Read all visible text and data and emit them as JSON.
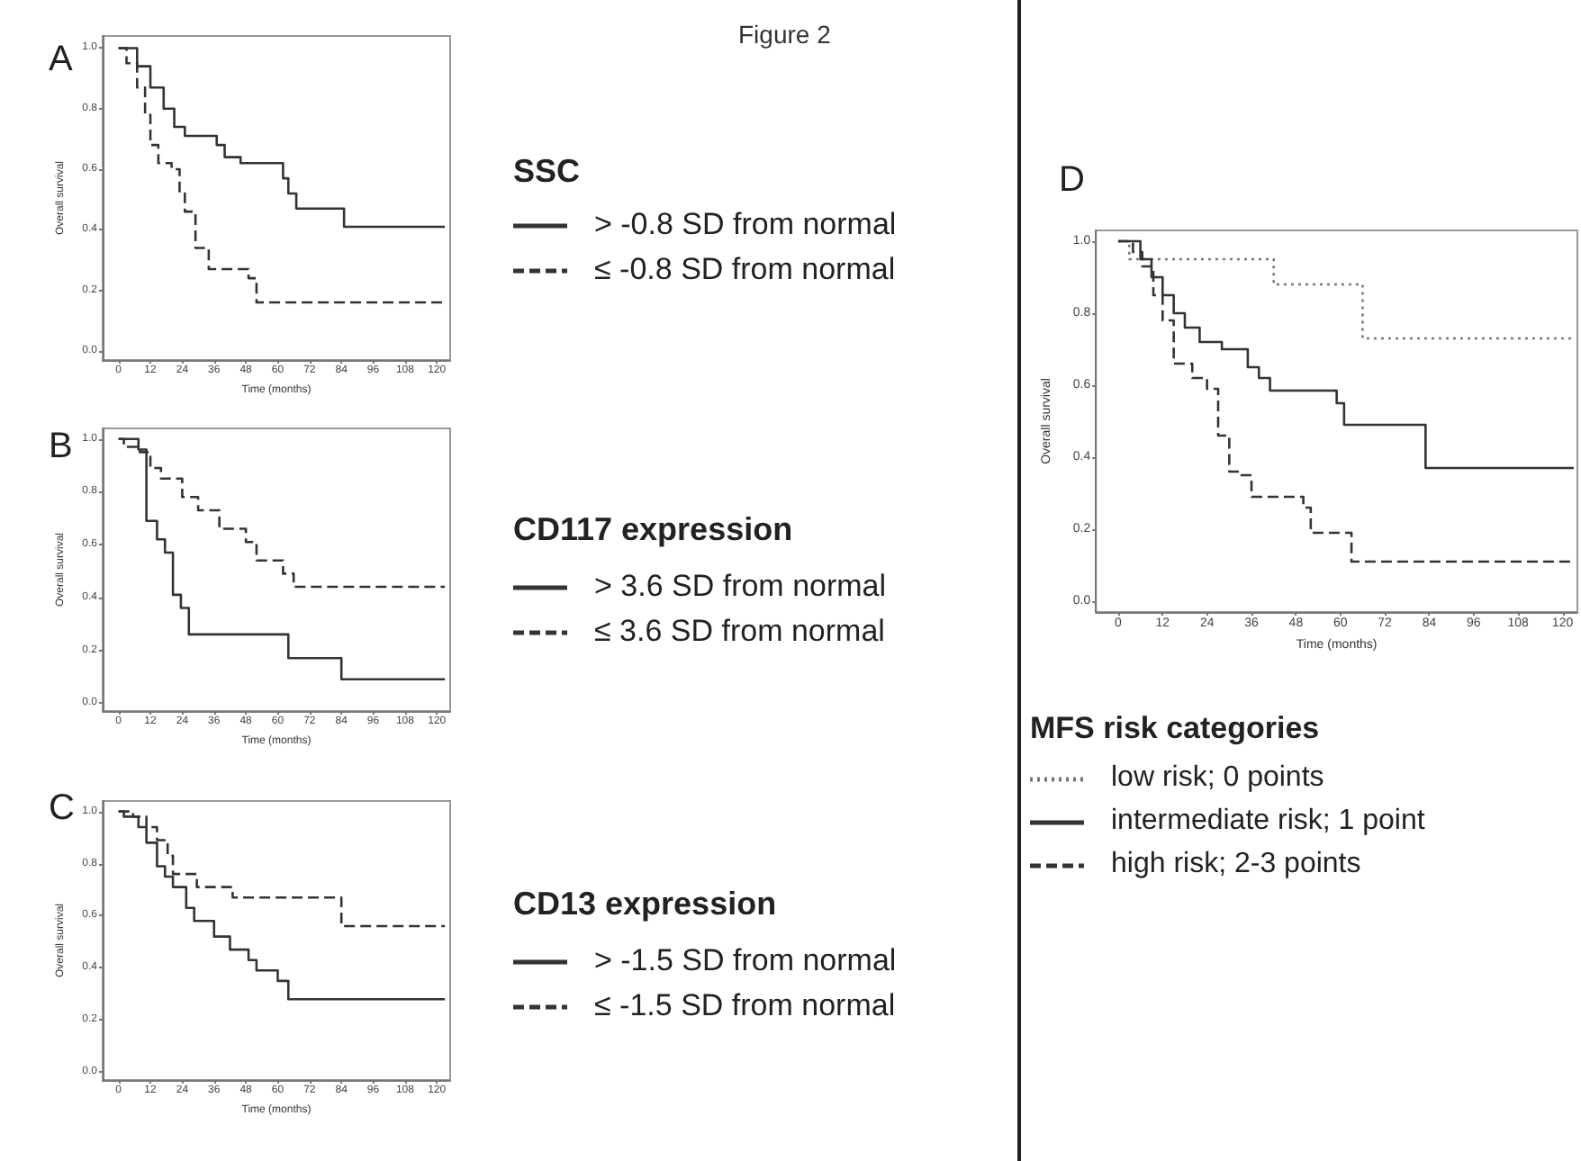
{
  "chart_data": [
    {
      "type": "step",
      "title": "A",
      "annotations": [
        "Figure 2"
      ],
      "xlabel": "Time (months)",
      "ylabel": "Overall survival",
      "legend_title": "SSC",
      "legend": "right",
      "grid": false,
      "marker": "none",
      "xlim": [
        -6,
        125
      ],
      "ylim": [
        -0.03,
        1.04
      ],
      "xticks": [
        0,
        12,
        24,
        36,
        48,
        60,
        72,
        84,
        96,
        108,
        120
      ],
      "yticks": [
        {
          "value": 0,
          "label": "0.0"
        },
        {
          "value": 0.2,
          "label": "0.2"
        },
        {
          "value": 0.4,
          "label": "0.4"
        },
        {
          "value": 0.6,
          "label": "0.6"
        },
        {
          "value": 0.8,
          "label": "0.8"
        },
        {
          "value": 1,
          "label": "1.0"
        }
      ],
      "series": [
        {
          "name": "> -0.8 SD from normal",
          "color": "#333333",
          "line_style": "solid",
          "x": [
            0,
            7,
            12,
            17,
            21,
            25,
            37,
            40,
            46,
            62,
            64,
            67,
            85,
            123
          ],
          "values": [
            1,
            0.94,
            0.87,
            0.8,
            0.74,
            0.71,
            0.68,
            0.64,
            0.62,
            0.57,
            0.52,
            0.47,
            0.41,
            0.41
          ]
        },
        {
          "name": "≤ -0.8 SD from normal",
          "color": "#333333",
          "line_style": "dashed",
          "x": [
            0,
            3,
            7,
            10,
            12,
            15,
            20,
            23,
            25,
            29,
            34,
            49,
            52,
            123
          ],
          "values": [
            1,
            0.95,
            0.87,
            0.78,
            0.68,
            0.62,
            0.6,
            0.52,
            0.46,
            0.34,
            0.27,
            0.24,
            0.16,
            0.16
          ]
        }
      ]
    },
    {
      "type": "step",
      "title": "B",
      "xlabel": "Time (months)",
      "ylabel": "Overall survival",
      "legend_title": "CD117 expression",
      "legend": "right",
      "grid": false,
      "marker": "none",
      "xlim": [
        -6,
        125
      ],
      "ylim": [
        -0.03,
        1.04
      ],
      "xticks": [
        0,
        12,
        24,
        36,
        48,
        60,
        72,
        84,
        96,
        108,
        120
      ],
      "yticks": [
        {
          "value": 0,
          "label": "0.0"
        },
        {
          "value": 0.2,
          "label": "0.2"
        },
        {
          "value": 0.4,
          "label": "0.4"
        },
        {
          "value": 0.6,
          "label": "0.6"
        },
        {
          "value": 0.8,
          "label": "0.8"
        },
        {
          "value": 1,
          "label": "1.0"
        }
      ],
      "series": [
        {
          "name": "> 3.6 SD from normal",
          "color": "#333333",
          "line_style": "solid",
          "x": [
            0,
            7.5,
            10.5,
            14.5,
            17.5,
            20.5,
            23.5,
            26.5,
            64,
            84,
            123
          ],
          "values": [
            1,
            0.96,
            0.69,
            0.62,
            0.57,
            0.41,
            0.36,
            0.26,
            0.17,
            0.09,
            0.09
          ]
        },
        {
          "name": "≤ 3.6 SD from normal",
          "color": "#333333",
          "line_style": "dashed",
          "x": [
            0,
            2,
            8,
            12,
            16,
            24,
            30,
            38,
            48,
            52,
            62,
            66,
            123
          ],
          "values": [
            1,
            0.97,
            0.95,
            0.89,
            0.85,
            0.78,
            0.73,
            0.66,
            0.61,
            0.54,
            0.49,
            0.44,
            0.44
          ]
        }
      ]
    },
    {
      "type": "step",
      "title": "C",
      "xlabel": "Time (months)",
      "ylabel": "Overall survival",
      "legend_title": "CD13 expression",
      "legend": "right",
      "grid": false,
      "marker": "none",
      "xlim": [
        -6,
        125
      ],
      "ylim": [
        -0.03,
        1.04
      ],
      "xticks": [
        0,
        12,
        24,
        36,
        48,
        60,
        72,
        84,
        96,
        108,
        120
      ],
      "yticks": [
        {
          "value": 0,
          "label": "0.0"
        },
        {
          "value": 0.2,
          "label": "0.2"
        },
        {
          "value": 0.4,
          "label": "0.4"
        },
        {
          "value": 0.6,
          "label": "0.6"
        },
        {
          "value": 0.8,
          "label": "0.8"
        },
        {
          "value": 1,
          "label": "1.0"
        }
      ],
      "series": [
        {
          "name": "> -1.5 SD from normal",
          "color": "#333333",
          "line_style": "solid",
          "x": [
            0,
            2,
            7.5,
            10.5,
            14.5,
            17.5,
            20.5,
            25.5,
            28.5,
            36,
            42,
            49,
            52,
            60,
            64,
            123
          ],
          "values": [
            1,
            0.98,
            0.94,
            0.88,
            0.79,
            0.75,
            0.71,
            0.63,
            0.58,
            0.52,
            0.47,
            0.43,
            0.39,
            0.35,
            0.28,
            0.28
          ]
        },
        {
          "name": "≤ -1.5 SD from normal",
          "color": "#333333",
          "line_style": "dashed",
          "x": [
            0,
            5.5,
            10.5,
            14.5,
            18.5,
            20.5,
            29.5,
            43,
            84,
            123
          ],
          "values": [
            1,
            0.98,
            0.94,
            0.89,
            0.83,
            0.76,
            0.71,
            0.67,
            0.56,
            0.56
          ]
        }
      ]
    },
    {
      "type": "step",
      "title": "D",
      "xlabel": "Time (months)",
      "ylabel": "Overall survival",
      "legend_title": "MFS risk categories",
      "legend": "bottom",
      "grid": false,
      "marker": "none",
      "xlim": [
        -6,
        124
      ],
      "ylim": [
        -0.03,
        1.03
      ],
      "xticks": [
        0,
        12,
        24,
        36,
        48,
        60,
        72,
        84,
        96,
        108,
        120
      ],
      "yticks": [
        {
          "value": 0,
          "label": "0.0"
        },
        {
          "value": 0.2,
          "label": "0.2"
        },
        {
          "value": 0.4,
          "label": "0.4"
        },
        {
          "value": 0.6,
          "label": "0.6"
        },
        {
          "value": 0.8,
          "label": "0.8"
        },
        {
          "value": 1,
          "label": "1.0"
        }
      ],
      "series": [
        {
          "name": "low risk; 0 points",
          "color": "#777777",
          "line_style": "dotted",
          "x": [
            0,
            3,
            42,
            66,
            123
          ],
          "values": [
            1,
            0.95,
            0.88,
            0.73,
            0.73
          ]
        },
        {
          "name": "intermediate risk; 1 point",
          "color": "#333333",
          "line_style": "solid",
          "x": [
            0,
            6,
            9,
            12,
            15,
            18,
            22,
            28,
            35,
            38,
            41,
            59,
            61,
            83,
            123
          ],
          "values": [
            1,
            0.95,
            0.9,
            0.85,
            0.8,
            0.76,
            0.72,
            0.7,
            0.65,
            0.62,
            0.585,
            0.55,
            0.49,
            0.37,
            0.37
          ]
        },
        {
          "name": "high risk; 2-3 points",
          "color": "#333333",
          "line_style": "dashed",
          "x": [
            0,
            4,
            6.5,
            9.5,
            12,
            15,
            20,
            24,
            27,
            30,
            33,
            36,
            50,
            52,
            63,
            123
          ],
          "values": [
            1,
            0.97,
            0.93,
            0.85,
            0.78,
            0.66,
            0.62,
            0.59,
            0.46,
            0.36,
            0.35,
            0.29,
            0.26,
            0.19,
            0.11,
            0.11
          ]
        }
      ]
    }
  ]
}
